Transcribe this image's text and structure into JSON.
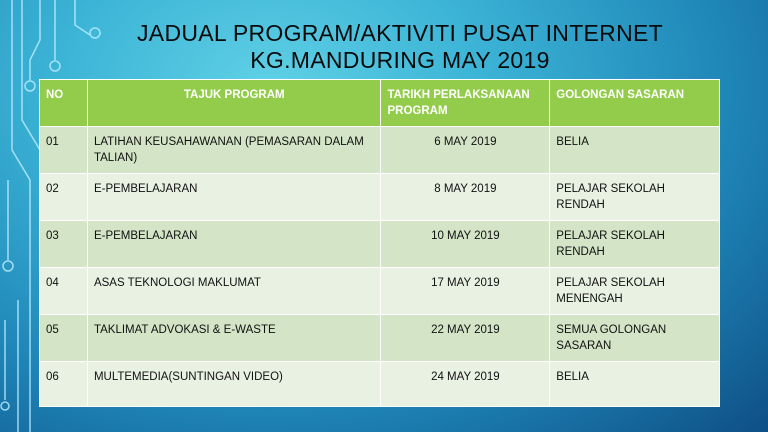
{
  "title": {
    "line1": "JADUAL PROGRAM/AKTIVITI PUSAT INTERNET",
    "line2": "KG.MANDURING MAY 2019"
  },
  "table": {
    "headers": [
      "NO",
      "TAJUK PROGRAM",
      "TARIKH PERLAKSANAAN PROGRAM",
      "GOLONGAN SASARAN"
    ],
    "rows": [
      {
        "no": "01",
        "program": "LATIHAN KEUSAHAWANAN (PEMASARAN DALAM TALIAN)",
        "date": "6 MAY 2019",
        "target": "BELIA"
      },
      {
        "no": "02",
        "program": "E-PEMBELAJARAN",
        "date": "8 MAY 2019",
        "target": "PELAJAR SEKOLAH RENDAH"
      },
      {
        "no": "03",
        "program": "E-PEMBELAJARAN",
        "date": "10 MAY 2019",
        "target": "PELAJAR SEKOLAH RENDAH"
      },
      {
        "no": "04",
        "program": "ASAS TEKNOLOGI MAKLUMAT",
        "date": "17 MAY 2019",
        "target": "PELAJAR SEKOLAH MENENGAH"
      },
      {
        "no": "05",
        "program": "TAKLIMAT ADVOKASI & E-WASTE",
        "date": "22 MAY 2019",
        "target": "SEMUA GOLONGAN SASARAN"
      },
      {
        "no": "06",
        "program": "MULTEMEDIA(SUNTINGAN VIDEO)",
        "date": "24 MAY 2019",
        "target": "BELIA"
      }
    ]
  },
  "colors": {
    "header": "#92cc4a",
    "row_odd": "#d3e5c6",
    "row_even": "#e9f1e3"
  }
}
